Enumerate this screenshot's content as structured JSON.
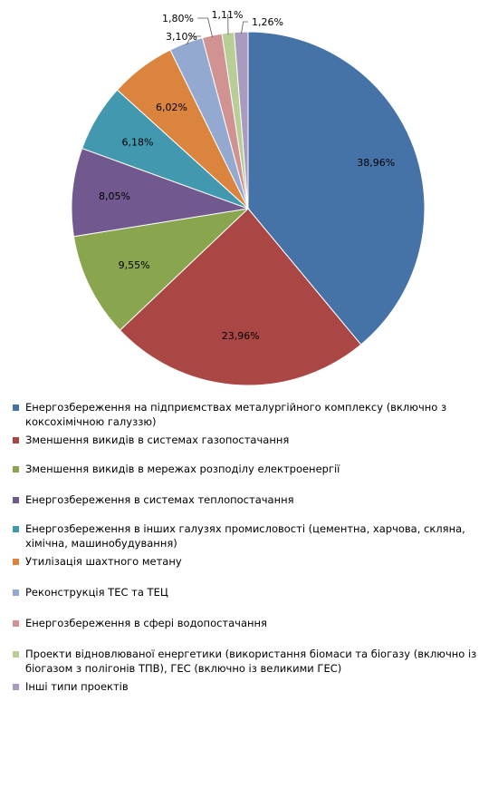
{
  "chart_data": {
    "type": "pie",
    "title": "",
    "legend_position": "bottom",
    "slices": [
      {
        "label": "Енергозбереження на підприємствах металургійного комплексу (включно з коксохімічною галуззю)",
        "value": 38.96,
        "display": "38,96%",
        "color": "#4572A7"
      },
      {
        "label": "Зменшення викидів в системах газопостачання",
        "value": 23.96,
        "display": "23,96%",
        "color": "#AA4643"
      },
      {
        "label": "Зменшення викидів в мережах розподілу електроенергії",
        "value": 9.55,
        "display": "9,55%",
        "color": "#89A54E"
      },
      {
        "label": "Енергозбереження в системах теплопостачання",
        "value": 8.05,
        "display": "8,05%",
        "color": "#71588F"
      },
      {
        "label": "Енергозбереження в інших галузях промисловості (цементна, харчова, скляна, хімічна, машинобудування)",
        "value": 6.18,
        "display": "6,18%",
        "color": "#4198AF"
      },
      {
        "label": "Утилізація шахтного метану",
        "value": 6.02,
        "display": "6,02%",
        "color": "#DB843D"
      },
      {
        "label": "Реконструкція ТЕС та ТЕЦ",
        "value": 3.1,
        "display": "3,10%",
        "color": "#93A9CF"
      },
      {
        "label": "Енергозбереження в сфері водопостачання",
        "value": 1.8,
        "display": "1,80%",
        "color": "#D19392"
      },
      {
        "label": "Проекти відновлюваної енергетики (використання біомаси та біогазу (включно із біогазом з полігонів ТПВ), ГЕС (включно із великими ГЕС)",
        "value": 1.11,
        "display": "1,11%",
        "color": "#B9CD96"
      },
      {
        "label": "Інші типи проектів",
        "value": 1.26,
        "display": "1,26%",
        "color": "#A99BBD"
      }
    ]
  }
}
